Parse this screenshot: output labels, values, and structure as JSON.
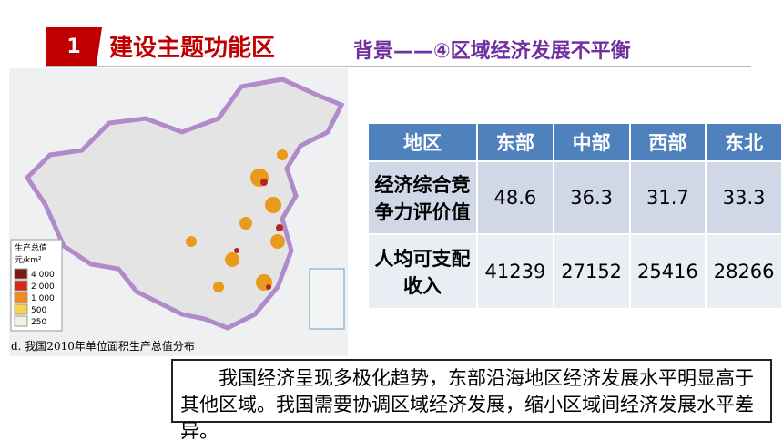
{
  "header": {
    "badge": "1",
    "title": "建设主题功能区",
    "subtitle": "背景——④区域经济发展不平衡"
  },
  "map": {
    "legend": {
      "title": "生产总值",
      "unit": "元/km²",
      "items": [
        "4 000",
        "2 000",
        "1 000",
        "500",
        "250"
      ]
    },
    "caption": "d. 我国2010年单位面积生产总值分布"
  },
  "table": {
    "header": [
      "地区",
      "东部",
      "中部",
      "西部",
      "东北"
    ],
    "rows": [
      [
        "经济综合竞争力评价值",
        48.6,
        36.3,
        31.7,
        33.3
      ],
      [
        "人均可支配收入",
        41239,
        27152,
        25416,
        28266
      ]
    ]
  },
  "text": "我国经济呈现多极化趋势，东部沿海地区经济发展水平明显高于其他区域。我国需要协调区域经济发展，缩小区域间经济发展水平差异。"
}
